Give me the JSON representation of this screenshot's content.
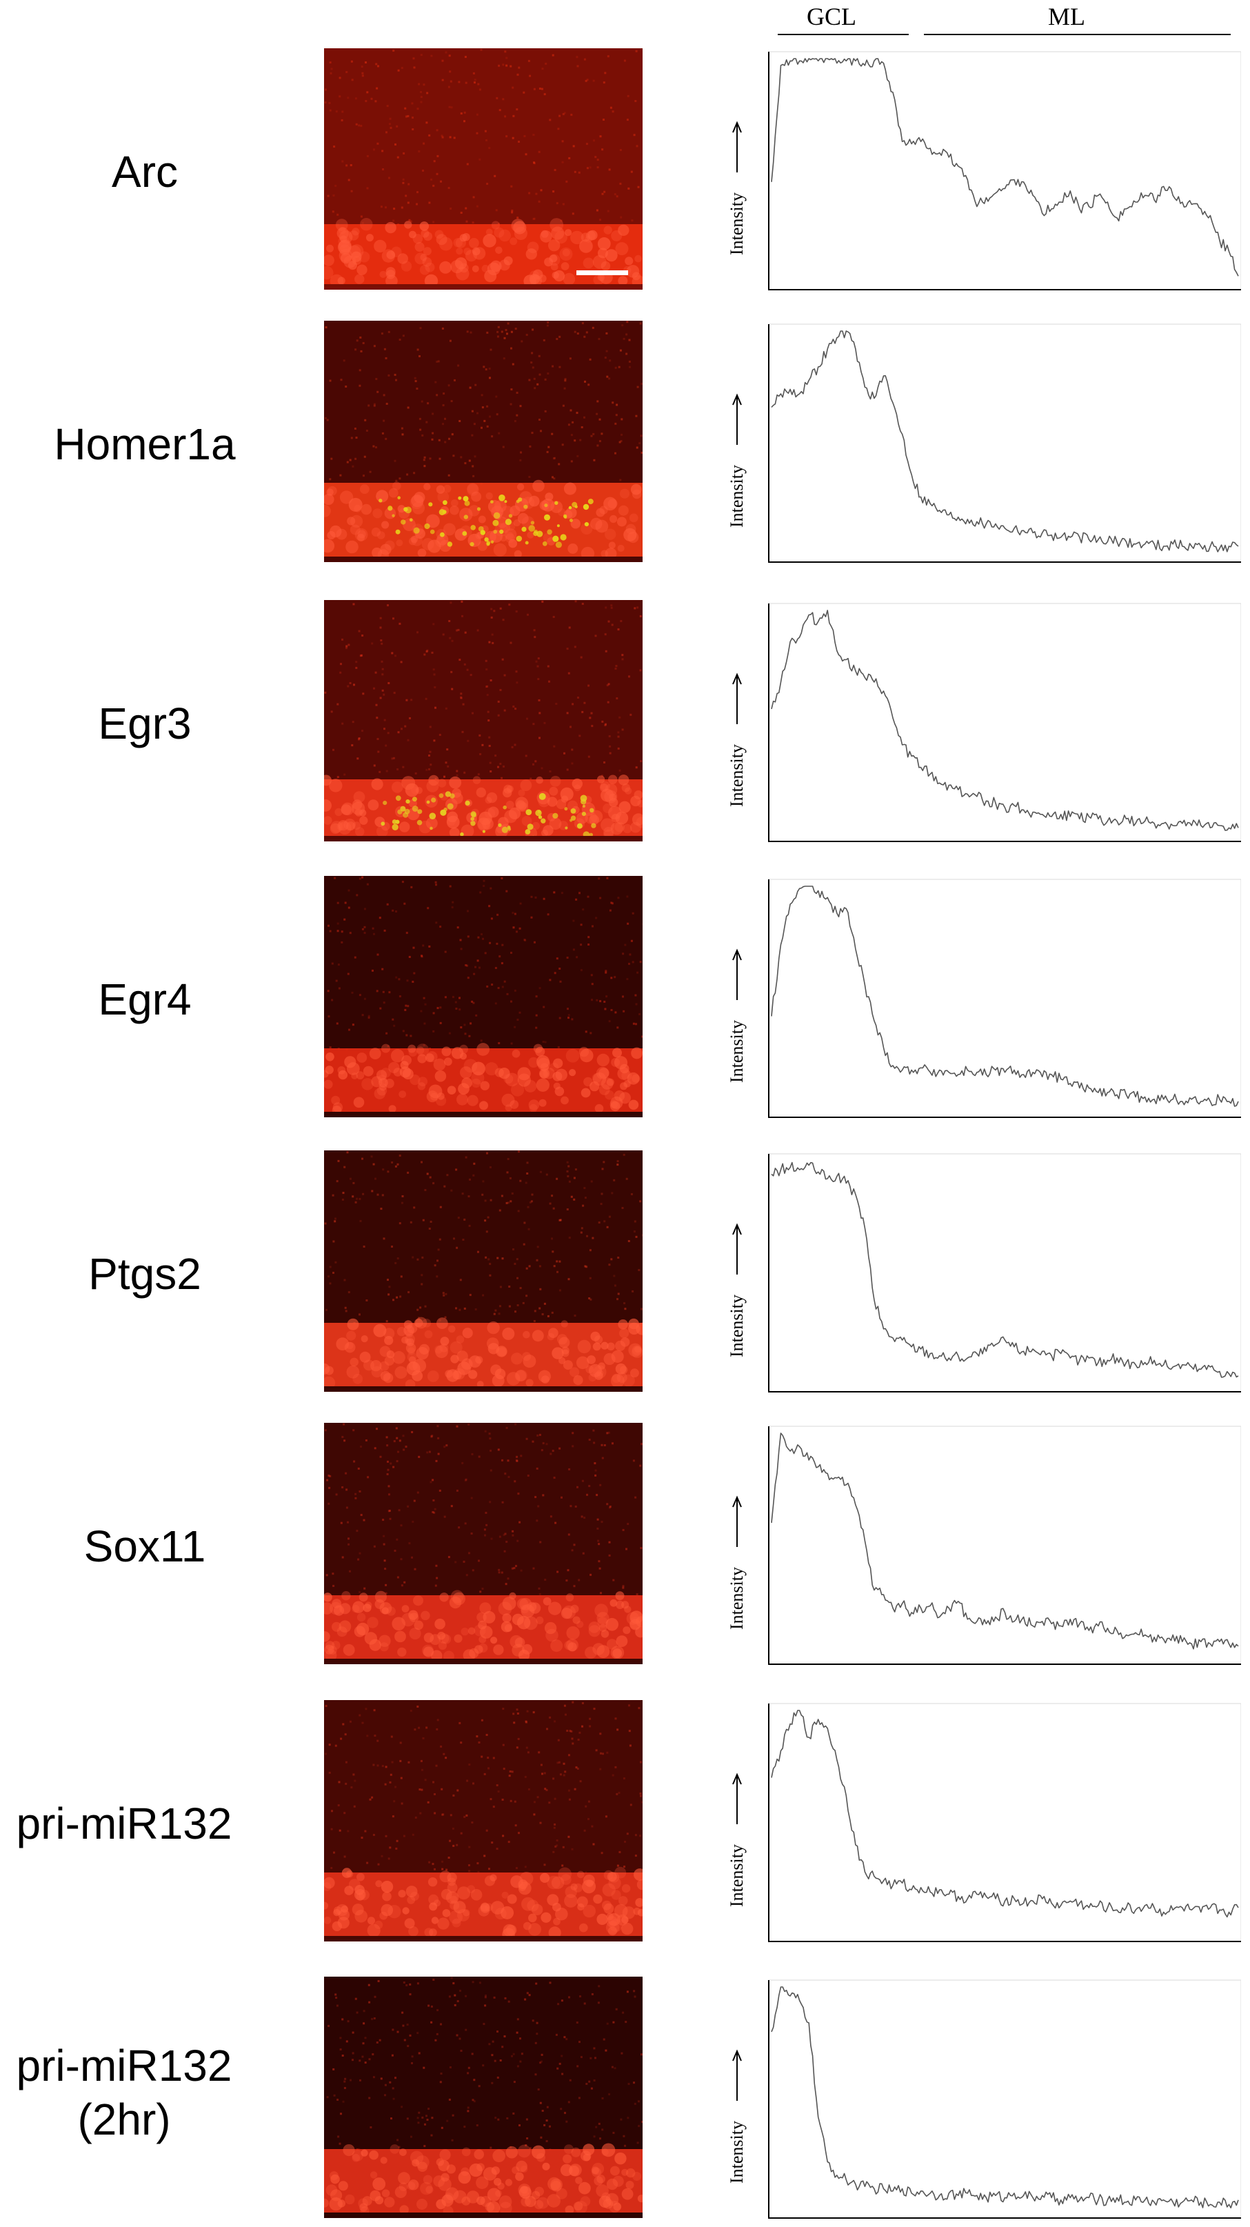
{
  "header": {
    "region_gcl": "GCL",
    "region_ml": "ML"
  },
  "y_axis_label": "Intensity",
  "rows": [
    {
      "gene": "Arc",
      "gene_line2": "",
      "scale_bar": true,
      "color": {
        "bg": "#7a0f05",
        "band": "#f0300f",
        "bright": "#e8b400"
      },
      "bright_band": false,
      "chart_data": {
        "type": "line",
        "ylabel": "Intensity",
        "x": [
          0,
          0.02,
          0.04,
          0.06,
          0.08,
          0.1,
          0.12,
          0.14,
          0.16,
          0.18,
          0.2,
          0.22,
          0.24,
          0.26,
          0.28,
          0.3,
          0.32,
          0.34,
          0.36,
          0.38,
          0.4,
          0.42,
          0.44,
          0.46,
          0.48,
          0.5,
          0.52,
          0.54,
          0.56,
          0.58,
          0.6,
          0.62,
          0.64,
          0.66,
          0.68,
          0.7,
          0.72,
          0.74,
          0.76,
          0.78,
          0.8,
          0.82,
          0.84,
          0.86,
          0.88,
          0.9,
          0.92,
          0.94,
          0.96,
          0.98,
          1.0
        ],
        "values": [
          0.45,
          0.97,
          0.99,
          0.99,
          1.0,
          0.99,
          1.0,
          0.98,
          0.99,
          0.99,
          0.97,
          0.99,
          0.98,
          0.85,
          0.63,
          0.62,
          0.63,
          0.6,
          0.58,
          0.56,
          0.52,
          0.46,
          0.34,
          0.38,
          0.4,
          0.42,
          0.46,
          0.45,
          0.39,
          0.31,
          0.33,
          0.36,
          0.41,
          0.33,
          0.34,
          0.39,
          0.36,
          0.29,
          0.33,
          0.36,
          0.39,
          0.37,
          0.43,
          0.39,
          0.36,
          0.35,
          0.33,
          0.3,
          0.19,
          0.14,
          0.03
        ]
      }
    },
    {
      "gene": "Homer1a",
      "gene_line2": "",
      "scale_bar": false,
      "color": {
        "bg": "#4a0703",
        "band": "#f23c16",
        "bright": "#e8d21a"
      },
      "bright_band": true,
      "chart_data": {
        "type": "line",
        "ylabel": "Intensity",
        "x": [
          0,
          0.02,
          0.04,
          0.06,
          0.08,
          0.1,
          0.12,
          0.14,
          0.16,
          0.18,
          0.2,
          0.22,
          0.24,
          0.26,
          0.28,
          0.3,
          0.32,
          0.34,
          0.36,
          0.38,
          0.4,
          0.42,
          0.44,
          0.46,
          0.48,
          0.5,
          0.52,
          0.54,
          0.56,
          0.58,
          0.6,
          0.62,
          0.64,
          0.66,
          0.68,
          0.7,
          0.72,
          0.74,
          0.76,
          0.78,
          0.8,
          0.82,
          0.84,
          0.86,
          0.88,
          0.9,
          0.92,
          0.94,
          0.96,
          0.98,
          1.0
        ],
        "values": [
          0.66,
          0.72,
          0.74,
          0.72,
          0.78,
          0.84,
          0.92,
          0.97,
          1.0,
          0.92,
          0.75,
          0.7,
          0.8,
          0.68,
          0.54,
          0.36,
          0.26,
          0.23,
          0.2,
          0.18,
          0.17,
          0.16,
          0.15,
          0.14,
          0.14,
          0.12,
          0.12,
          0.11,
          0.1,
          0.1,
          0.09,
          0.08,
          0.08,
          0.08,
          0.07,
          0.07,
          0.06,
          0.06,
          0.06,
          0.05,
          0.05,
          0.05,
          0.04,
          0.05,
          0.04,
          0.04,
          0.04,
          0.04,
          0.03,
          0.04,
          0.04
        ]
      }
    },
    {
      "gene": "Egr3",
      "gene_line2": "",
      "scale_bar": false,
      "color": {
        "bg": "#560904",
        "band": "#f0351a",
        "bright": "#e6cc22"
      },
      "bright_band": true,
      "chart_data": {
        "type": "line",
        "ylabel": "Intensity",
        "x": [
          0,
          0.02,
          0.04,
          0.06,
          0.08,
          0.1,
          0.12,
          0.14,
          0.16,
          0.18,
          0.2,
          0.22,
          0.24,
          0.26,
          0.28,
          0.3,
          0.32,
          0.34,
          0.36,
          0.38,
          0.4,
          0.42,
          0.44,
          0.46,
          0.48,
          0.5,
          0.52,
          0.54,
          0.56,
          0.58,
          0.6,
          0.62,
          0.64,
          0.66,
          0.68,
          0.7,
          0.72,
          0.74,
          0.76,
          0.78,
          0.8,
          0.82,
          0.84,
          0.86,
          0.88,
          0.9,
          0.92,
          0.94,
          0.96,
          0.98,
          1.0
        ],
        "values": [
          0.56,
          0.68,
          0.86,
          0.88,
          0.98,
          0.95,
          1.0,
          0.82,
          0.78,
          0.73,
          0.7,
          0.68,
          0.64,
          0.52,
          0.4,
          0.35,
          0.3,
          0.27,
          0.23,
          0.22,
          0.2,
          0.18,
          0.17,
          0.15,
          0.14,
          0.12,
          0.13,
          0.11,
          0.1,
          0.09,
          0.08,
          0.09,
          0.08,
          0.07,
          0.08,
          0.07,
          0.06,
          0.06,
          0.07,
          0.05,
          0.06,
          0.05,
          0.05,
          0.04,
          0.05,
          0.04,
          0.04,
          0.03,
          0.04,
          0.03,
          0.03
        ]
      }
    },
    {
      "gene": "Egr4",
      "gene_line2": "",
      "scale_bar": false,
      "color": {
        "bg": "#330502",
        "band": "#e82a12",
        "bright": "#e82a12"
      },
      "bright_band": false,
      "chart_data": {
        "type": "line",
        "ylabel": "Intensity",
        "x": [
          0,
          0.02,
          0.04,
          0.06,
          0.08,
          0.1,
          0.12,
          0.14,
          0.16,
          0.18,
          0.2,
          0.22,
          0.24,
          0.26,
          0.28,
          0.3,
          0.32,
          0.34,
          0.36,
          0.38,
          0.4,
          0.42,
          0.44,
          0.46,
          0.48,
          0.5,
          0.52,
          0.54,
          0.56,
          0.58,
          0.6,
          0.62,
          0.64,
          0.66,
          0.68,
          0.7,
          0.72,
          0.74,
          0.76,
          0.78,
          0.8,
          0.82,
          0.84,
          0.86,
          0.88,
          0.9,
          0.92,
          0.94,
          0.96,
          0.98,
          1.0
        ],
        "values": [
          0.42,
          0.74,
          0.92,
          0.99,
          1.0,
          0.98,
          0.95,
          0.88,
          0.9,
          0.72,
          0.56,
          0.4,
          0.28,
          0.2,
          0.18,
          0.18,
          0.19,
          0.17,
          0.18,
          0.17,
          0.16,
          0.18,
          0.17,
          0.16,
          0.18,
          0.17,
          0.18,
          0.16,
          0.17,
          0.15,
          0.16,
          0.14,
          0.12,
          0.1,
          0.1,
          0.08,
          0.08,
          0.07,
          0.07,
          0.06,
          0.06,
          0.05,
          0.05,
          0.05,
          0.04,
          0.05,
          0.04,
          0.04,
          0.05,
          0.04,
          0.04
        ]
      }
    },
    {
      "gene": "Ptgs2",
      "gene_line2": "",
      "scale_bar": false,
      "color": {
        "bg": "#380602",
        "band": "#ee3a1c",
        "bright": "#ee3a1c"
      },
      "bright_band": false,
      "chart_data": {
        "type": "line",
        "ylabel": "Intensity",
        "x": [
          0,
          0.02,
          0.04,
          0.06,
          0.08,
          0.1,
          0.12,
          0.14,
          0.16,
          0.18,
          0.2,
          0.22,
          0.24,
          0.26,
          0.28,
          0.3,
          0.32,
          0.34,
          0.36,
          0.38,
          0.4,
          0.42,
          0.44,
          0.46,
          0.48,
          0.5,
          0.52,
          0.54,
          0.56,
          0.58,
          0.6,
          0.62,
          0.64,
          0.66,
          0.68,
          0.7,
          0.72,
          0.74,
          0.76,
          0.78,
          0.8,
          0.82,
          0.84,
          0.86,
          0.88,
          0.9,
          0.92,
          0.94,
          0.96,
          0.98,
          1.0
        ],
        "values": [
          0.94,
          0.96,
          0.97,
          0.96,
          0.98,
          0.95,
          0.92,
          0.93,
          0.9,
          0.85,
          0.7,
          0.38,
          0.25,
          0.21,
          0.2,
          0.17,
          0.16,
          0.14,
          0.13,
          0.12,
          0.13,
          0.12,
          0.14,
          0.15,
          0.18,
          0.2,
          0.17,
          0.15,
          0.16,
          0.15,
          0.13,
          0.14,
          0.12,
          0.11,
          0.12,
          0.1,
          0.11,
          0.12,
          0.1,
          0.09,
          0.1,
          0.11,
          0.09,
          0.08,
          0.09,
          0.08,
          0.07,
          0.08,
          0.06,
          0.05,
          0.04
        ]
      }
    },
    {
      "gene": "Sox11",
      "gene_line2": "",
      "scale_bar": false,
      "color": {
        "bg": "#3f0703",
        "band": "#e8301a",
        "bright": "#e8301a"
      },
      "bright_band": false,
      "chart_data": {
        "type": "line",
        "ylabel": "Intensity",
        "x": [
          0,
          0.02,
          0.04,
          0.06,
          0.08,
          0.1,
          0.12,
          0.14,
          0.16,
          0.18,
          0.2,
          0.22,
          0.24,
          0.26,
          0.28,
          0.3,
          0.32,
          0.34,
          0.36,
          0.38,
          0.4,
          0.42,
          0.44,
          0.46,
          0.48,
          0.5,
          0.52,
          0.54,
          0.56,
          0.58,
          0.6,
          0.62,
          0.64,
          0.66,
          0.68,
          0.7,
          0.72,
          0.74,
          0.76,
          0.78,
          0.8,
          0.82,
          0.84,
          0.86,
          0.88,
          0.9,
          0.92,
          0.94,
          0.96,
          0.98,
          1.0
        ],
        "values": [
          0.6,
          1.0,
          0.92,
          0.94,
          0.88,
          0.85,
          0.82,
          0.8,
          0.77,
          0.68,
          0.52,
          0.3,
          0.28,
          0.22,
          0.24,
          0.2,
          0.22,
          0.23,
          0.18,
          0.22,
          0.25,
          0.17,
          0.16,
          0.15,
          0.18,
          0.2,
          0.16,
          0.18,
          0.14,
          0.16,
          0.15,
          0.14,
          0.17,
          0.15,
          0.12,
          0.14,
          0.13,
          0.12,
          0.1,
          0.11,
          0.1,
          0.09,
          0.08,
          0.1,
          0.07,
          0.06,
          0.07,
          0.06,
          0.07,
          0.06,
          0.05
        ]
      }
    },
    {
      "gene": "pri-miR132",
      "gene_line2": "",
      "scale_bar": false,
      "color": {
        "bg": "#480803",
        "band": "#e8331a",
        "bright": "#e8331a"
      },
      "bright_band": false,
      "chart_data": {
        "type": "line",
        "ylabel": "Intensity",
        "x": [
          0,
          0.02,
          0.04,
          0.06,
          0.08,
          0.1,
          0.12,
          0.14,
          0.16,
          0.18,
          0.2,
          0.22,
          0.24,
          0.26,
          0.28,
          0.3,
          0.32,
          0.34,
          0.36,
          0.38,
          0.4,
          0.42,
          0.44,
          0.46,
          0.48,
          0.5,
          0.52,
          0.54,
          0.56,
          0.58,
          0.6,
          0.62,
          0.64,
          0.66,
          0.68,
          0.7,
          0.72,
          0.74,
          0.76,
          0.78,
          0.8,
          0.82,
          0.84,
          0.86,
          0.88,
          0.9,
          0.92,
          0.94,
          0.96,
          0.98,
          1.0
        ],
        "values": [
          0.7,
          0.82,
          0.94,
          1.0,
          0.88,
          0.96,
          0.92,
          0.78,
          0.62,
          0.4,
          0.28,
          0.26,
          0.24,
          0.22,
          0.23,
          0.2,
          0.21,
          0.19,
          0.2,
          0.18,
          0.17,
          0.16,
          0.18,
          0.17,
          0.16,
          0.15,
          0.16,
          0.14,
          0.15,
          0.16,
          0.14,
          0.13,
          0.15,
          0.14,
          0.12,
          0.13,
          0.12,
          0.11,
          0.12,
          0.11,
          0.13,
          0.12,
          0.1,
          0.11,
          0.12,
          0.11,
          0.1,
          0.12,
          0.11,
          0.1,
          0.12
        ]
      }
    },
    {
      "gene": "pri-miR132",
      "gene_line2": "(2hr)",
      "scale_bar": false,
      "color": {
        "bg": "#2c0402",
        "band": "#e8311a",
        "bright": "#e8311a"
      },
      "bright_band": false,
      "chart_data": {
        "type": "line",
        "ylabel": "Intensity",
        "x": [
          0,
          0.02,
          0.04,
          0.06,
          0.08,
          0.1,
          0.12,
          0.14,
          0.16,
          0.18,
          0.2,
          0.22,
          0.24,
          0.26,
          0.28,
          0.3,
          0.32,
          0.34,
          0.36,
          0.38,
          0.4,
          0.42,
          0.44,
          0.46,
          0.48,
          0.5,
          0.52,
          0.54,
          0.56,
          0.58,
          0.6,
          0.62,
          0.64,
          0.66,
          0.68,
          0.7,
          0.72,
          0.74,
          0.76,
          0.78,
          0.8,
          0.82,
          0.84,
          0.86,
          0.88,
          0.9,
          0.92,
          0.94,
          0.96,
          0.98,
          1.0
        ],
        "values": [
          0.8,
          1.0,
          0.96,
          0.94,
          0.84,
          0.42,
          0.22,
          0.16,
          0.14,
          0.12,
          0.11,
          0.1,
          0.1,
          0.09,
          0.1,
          0.08,
          0.09,
          0.08,
          0.07,
          0.08,
          0.07,
          0.08,
          0.07,
          0.06,
          0.07,
          0.06,
          0.08,
          0.07,
          0.06,
          0.07,
          0.06,
          0.05,
          0.06,
          0.05,
          0.06,
          0.05,
          0.05,
          0.06,
          0.04,
          0.05,
          0.05,
          0.04,
          0.05,
          0.04,
          0.04,
          0.05,
          0.04,
          0.03,
          0.04,
          0.03,
          0.05
        ]
      }
    }
  ]
}
